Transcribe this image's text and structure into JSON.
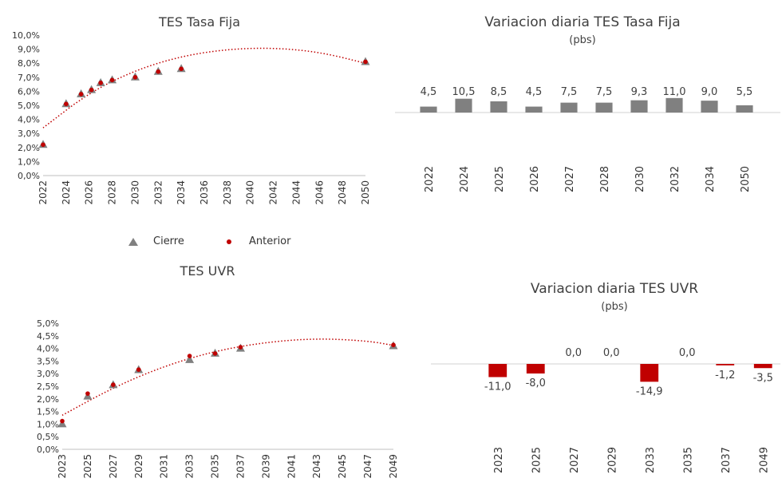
{
  "chart_data": [
    {
      "id": "fija_curve",
      "type": "scatter",
      "title": "TES Tasa Fija",
      "x_ticks": [
        "2022",
        "2024",
        "2026",
        "2028",
        "2030",
        "2032",
        "2034",
        "2036",
        "2038",
        "2040",
        "2042",
        "2044",
        "2046",
        "2048",
        "2050"
      ],
      "y_ticks": [
        "0,0%",
        "1,0%",
        "2,0%",
        "3,0%",
        "4,0%",
        "5,0%",
        "6,0%",
        "7,0%",
        "8,0%",
        "9,0%",
        "10,0%"
      ],
      "ylim": [
        0,
        10
      ],
      "xlim": [
        2022,
        2050
      ],
      "series": [
        {
          "name": "Cierre",
          "marker": "triangle",
          "color": "#808080",
          "x": [
            2022,
            2024,
            2025.3,
            2026.2,
            2027,
            2028,
            2030,
            2032,
            2034,
            2050
          ],
          "y": [
            2.2,
            5.1,
            5.8,
            6.1,
            6.6,
            6.8,
            7.0,
            7.4,
            7.6,
            8.1
          ]
        },
        {
          "name": "Anterior",
          "marker": "dot",
          "color": "#c00000",
          "x": [
            2022,
            2024,
            2025.3,
            2026.2,
            2027,
            2028,
            2030,
            2032,
            2034,
            2050
          ],
          "y": [
            2.2,
            5.1,
            5.8,
            6.1,
            6.6,
            6.8,
            7.0,
            7.4,
            7.6,
            8.1
          ]
        }
      ],
      "trend": {
        "type": "poly2",
        "color": "#c00000",
        "x": [
          2022,
          2026,
          2030,
          2034,
          2038,
          2042,
          2046,
          2050
        ],
        "y": [
          3.4,
          5.9,
          7.5,
          8.5,
          9.0,
          9.1,
          8.8,
          8.0
        ]
      }
    },
    {
      "id": "fija_var",
      "type": "bar",
      "title": "Variacion diaria TES Tasa Fija",
      "subtitle": "(pbs)",
      "categories": [
        "2022",
        "2024",
        "2025",
        "2026",
        "2027",
        "2028",
        "2030",
        "2032",
        "2034",
        "2050"
      ],
      "values": [
        4.5,
        10.5,
        8.5,
        4.5,
        7.5,
        7.5,
        9.3,
        11.0,
        9.0,
        5.5
      ],
      "labels": [
        "4,5",
        "10,5",
        "8,5",
        "4,5",
        "7,5",
        "7,5",
        "9,3",
        "11,0",
        "9,0",
        "5,5"
      ],
      "color": "#808080"
    },
    {
      "id": "uvr_curve",
      "type": "scatter",
      "title": "TES UVR",
      "x_ticks": [
        "2023",
        "2025",
        "2027",
        "2029",
        "2031",
        "2033",
        "2035",
        "2037",
        "2039",
        "2041",
        "2043",
        "2045",
        "2047",
        "2049"
      ],
      "y_ticks": [
        "0,0%",
        "0,5%",
        "1,0%",
        "1,5%",
        "2,0%",
        "2,5%",
        "3,0%",
        "3,5%",
        "4,0%",
        "4,5%",
        "5,0%"
      ],
      "ylim": [
        0,
        5
      ],
      "xlim": [
        2023,
        2049
      ],
      "series": [
        {
          "name": "Cierre",
          "marker": "triangle",
          "color": "#808080",
          "x": [
            2023,
            2025,
            2027,
            2029,
            2033,
            2035,
            2037,
            2049
          ],
          "y": [
            1.0,
            2.1,
            2.55,
            3.15,
            3.55,
            3.8,
            4.0,
            4.1
          ]
        },
        {
          "name": "Anterior",
          "marker": "dot",
          "color": "#c00000",
          "x": [
            2023,
            2025,
            2027,
            2029,
            2033,
            2035,
            2037,
            2049
          ],
          "y": [
            1.12,
            2.21,
            2.56,
            3.16,
            3.7,
            3.8,
            4.05,
            4.14
          ]
        }
      ],
      "trend": {
        "type": "poly2",
        "color": "#c00000",
        "x": [
          2023,
          2027,
          2031,
          2035,
          2039,
          2043,
          2047,
          2049
        ],
        "y": [
          1.35,
          2.45,
          3.3,
          3.9,
          4.25,
          4.4,
          4.3,
          4.12
        ]
      }
    },
    {
      "id": "uvr_var",
      "type": "bar",
      "title": "Variacion diaria TES UVR",
      "subtitle": "(pbs)",
      "categories": [
        "2023",
        "2025",
        "2027",
        "2029",
        "2033",
        "2035",
        "2037",
        "2049"
      ],
      "values": [
        -11.0,
        -8.0,
        0.0,
        0.0,
        -14.9,
        0.0,
        -1.2,
        -3.5
      ],
      "labels": [
        "-11,0",
        "-8,0",
        "0,0",
        "0,0",
        "-14,9",
        "0,0",
        "-1,2",
        "-3,5"
      ],
      "color": "#c00000"
    }
  ],
  "legend": {
    "items": [
      {
        "label": "Cierre",
        "marker": "triangle",
        "color": "#808080"
      },
      {
        "label": "Anterior",
        "marker": "dot",
        "color": "#c00000"
      }
    ]
  }
}
